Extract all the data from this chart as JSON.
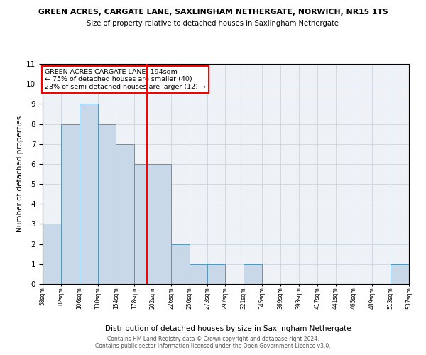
{
  "title1": "GREEN ACRES, CARGATE LANE, SAXLINGHAM NETHERGATE, NORWICH, NR15 1TS",
  "title2": "Size of property relative to detached houses in Saxlingham Nethergate",
  "xlabel": "Distribution of detached houses by size in Saxlingham Nethergate",
  "ylabel": "Number of detached properties",
  "bin_edges": [
    58,
    82,
    106,
    130,
    154,
    178,
    202,
    226,
    250,
    273,
    297,
    321,
    345,
    369,
    393,
    417,
    441,
    465,
    489,
    513,
    537
  ],
  "counts": [
    3,
    8,
    9,
    8,
    7,
    6,
    6,
    2,
    1,
    1,
    0,
    1,
    0,
    0,
    0,
    0,
    0,
    0,
    0,
    1
  ],
  "bar_color": "#c8d8e8",
  "bar_edge_color": "#5599bb",
  "vline_x": 194,
  "vline_color": "red",
  "annotation_title": "GREEN ACRES CARGATE LANE: 194sqm",
  "annotation_line1": "← 75% of detached houses are smaller (40)",
  "annotation_line2": "23% of semi-detached houses are larger (12) →",
  "box_color": "white",
  "box_edge_color": "red",
  "ylim": [
    0,
    11
  ],
  "yticks": [
    0,
    1,
    2,
    3,
    4,
    5,
    6,
    7,
    8,
    9,
    10,
    11
  ],
  "tick_labels": [
    "58sqm",
    "82sqm",
    "106sqm",
    "130sqm",
    "154sqm",
    "178sqm",
    "202sqm",
    "226sqm",
    "250sqm",
    "273sqm",
    "297sqm",
    "321sqm",
    "345sqm",
    "369sqm",
    "393sqm",
    "417sqm",
    "441sqm",
    "465sqm",
    "489sqm",
    "513sqm",
    "537sqm"
  ],
  "footer1": "Contains HM Land Registry data © Crown copyright and database right 2024.",
  "footer2": "Contains public sector information licensed under the Open Government Licence v3.0.",
  "bg_color": "#eef2f7",
  "grid_color": "#d0d8e4"
}
